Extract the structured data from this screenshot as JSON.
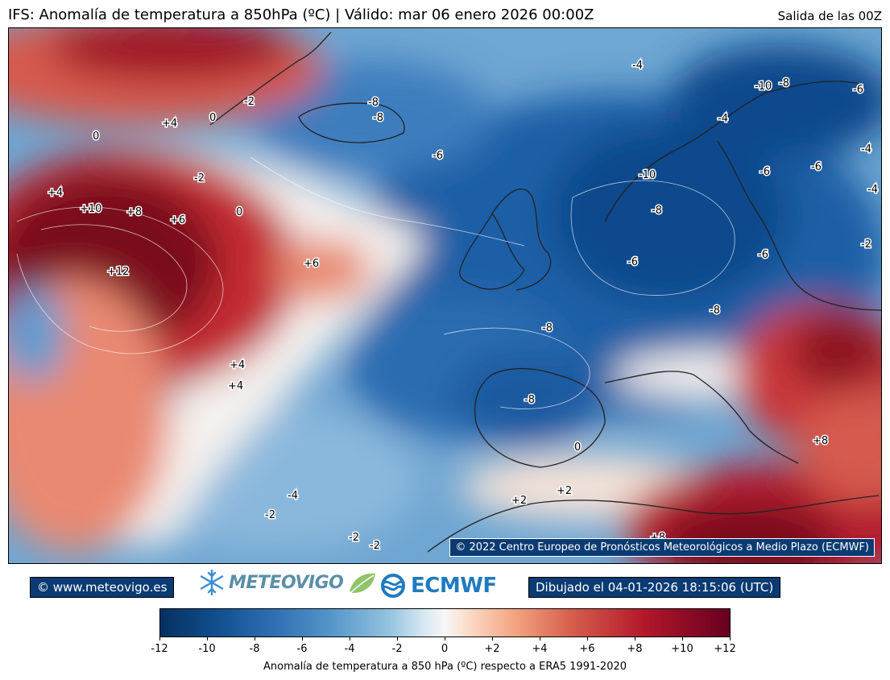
{
  "header": {
    "title": "IFS: Anomalía de temperatura a 850hPa  (ºC) | Válido: mar 06 enero 2026 00:00Z",
    "run": "Salida de las 00Z"
  },
  "map": {
    "copyright": "© 2022 Centro Europeo de Pronósticos Meteorológicos a Medio Plazo (ECMWF)",
    "contour_labels": [
      "-8",
      "-8",
      "-2",
      "0",
      "+4",
      "0",
      "-6",
      "-4",
      "-10",
      "-8",
      "-6",
      "-4",
      "-4",
      "-6",
      "-6",
      "-4",
      "-2",
      "+4",
      "+10",
      "+8",
      "+6",
      "0",
      "-2",
      "-10",
      "-8",
      "-6",
      "-6",
      "+12",
      "+6",
      "-8",
      "-8",
      "-8",
      "+4",
      "+4",
      "0",
      "+2",
      "+2",
      "-2",
      "-4",
      "-2",
      "-2",
      "+8",
      "+8"
    ]
  },
  "footer": {
    "site": "© www.meteovigo.es",
    "brand": "METEOVIGO",
    "ecmwf": "ECMWF",
    "drawn": "Dibujado el 04-01-2026 18:15:06 (UTC)"
  },
  "colorbar": {
    "ticks": [
      "-12",
      "-10",
      "-8",
      "-6",
      "-4",
      "-2",
      "0",
      "+2",
      "+4",
      "+6",
      "+8",
      "+10",
      "+12"
    ],
    "label": "Anomalía de temperatura a 850 hPa (ºC) respecto a ERA5 1991-2020",
    "colors": {
      "min": "#053061",
      "mid": "#f7f7f7",
      "max": "#67001f"
    }
  },
  "icons": [
    "snowflake-icon",
    "leaf-icon",
    "ecmwf-logo-icon"
  ]
}
